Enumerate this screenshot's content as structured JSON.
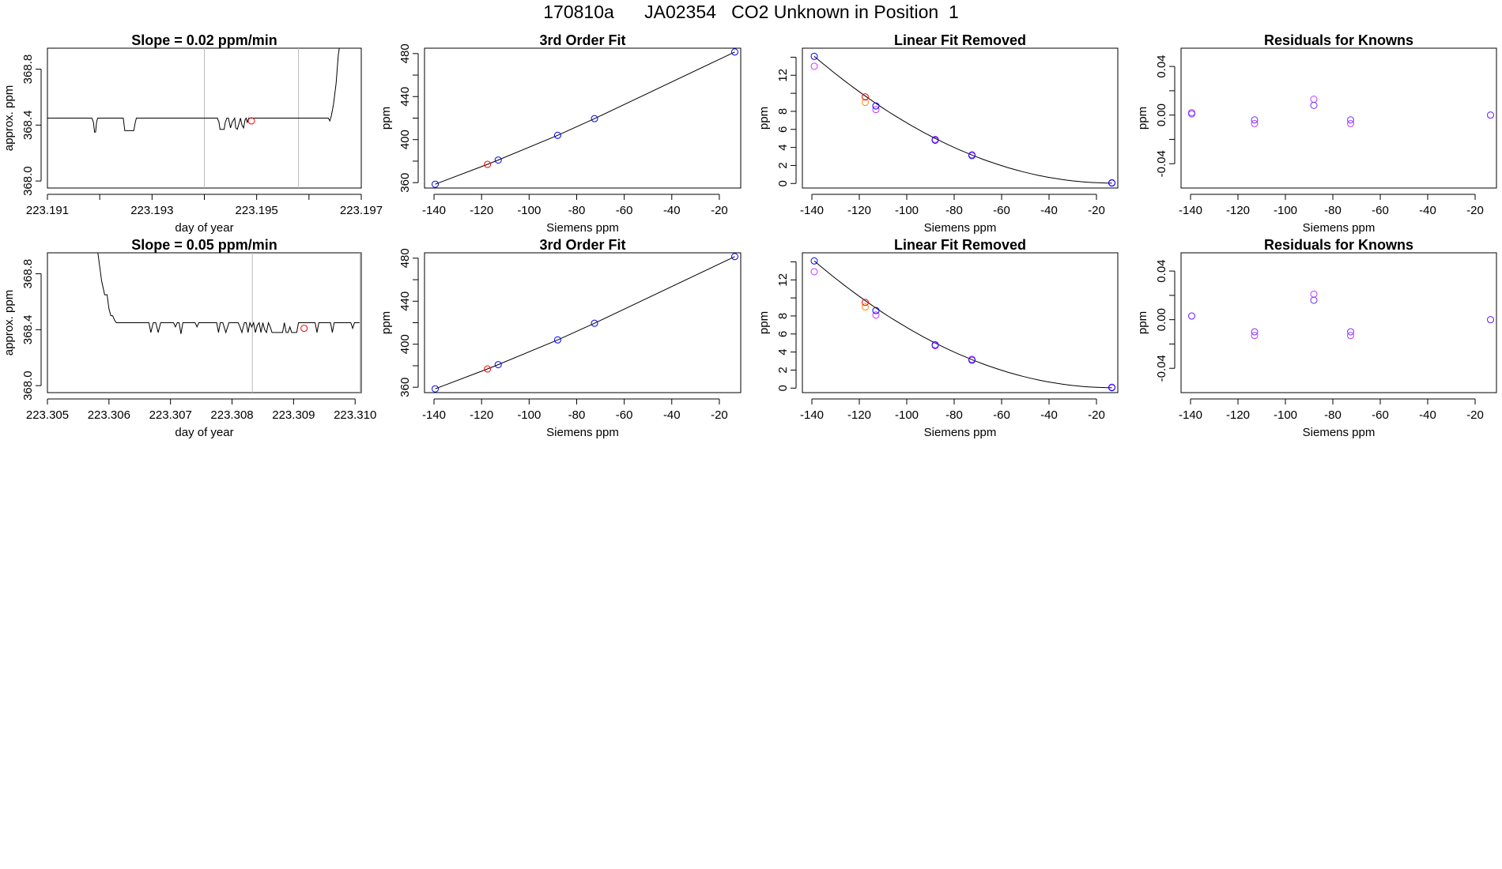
{
  "title": "170810a      JA02354   CO2 Unknown in Position  1",
  "colors": {
    "line": "#000000",
    "known": "#0000ff",
    "unknown": "#ff0000",
    "magenta": "#cc33ff",
    "orange": "#ff8c00",
    "purple": "#6633ff",
    "vline": "#bbbbbb"
  },
  "chart_data": [
    {
      "type": "line",
      "title": "Slope =  0.02  ppm/min",
      "xlabel": "day of year",
      "ylabel": "approx. ppm",
      "xlim": [
        223.191,
        223.197
      ],
      "ylim": [
        367.95,
        368.95
      ],
      "xticks": [
        "223.191",
        "223.193",
        "223.195",
        "223.197"
      ],
      "xminor": [
        223.192,
        223.194,
        223.196
      ],
      "yticks": [
        "368.0",
        "368.4",
        "368.8"
      ],
      "vlines": [
        223.194,
        223.1958
      ],
      "x": [
        223.191,
        223.19185,
        223.19188,
        223.1919,
        223.19192,
        223.19194,
        223.19196,
        223.19245,
        223.19248,
        223.1925,
        223.19255,
        223.19265,
        223.19268,
        223.1927,
        223.19425,
        223.19428,
        223.1943,
        223.19438,
        223.1944,
        223.19443,
        223.19446,
        223.1945,
        223.19453,
        223.19458,
        223.1946,
        223.19463,
        223.19467,
        223.19469,
        223.19472,
        223.19475,
        223.19478,
        223.1948,
        223.19482,
        223.19485,
        223.1949,
        223.19637,
        223.1964,
        223.19643,
        223.19647,
        223.19652,
        223.19656,
        223.19658
      ],
      "y": [
        368.45,
        368.45,
        368.42,
        368.35,
        368.35,
        368.42,
        368.45,
        368.45,
        368.36,
        368.36,
        368.36,
        368.36,
        368.42,
        368.45,
        368.45,
        368.42,
        368.37,
        368.37,
        368.42,
        368.45,
        368.45,
        368.38,
        368.42,
        368.45,
        368.38,
        368.37,
        368.42,
        368.45,
        368.4,
        368.38,
        368.44,
        368.45,
        368.42,
        368.45,
        368.45,
        368.45,
        368.43,
        368.47,
        368.55,
        368.7,
        368.9,
        368.95
      ],
      "unknown_point": {
        "x": 223.1949,
        "y": 368.43
      }
    },
    {
      "type": "scatter",
      "title": "3rd Order Fit",
      "xlabel": "Siemens ppm",
      "ylabel": "ppm",
      "xlim": [
        -144,
        -11
      ],
      "ylim": [
        355,
        485
      ],
      "xticks": [
        -140,
        -120,
        -100,
        -80,
        -60,
        -40,
        -20
      ],
      "yticks": [
        360,
        400,
        440,
        480
      ],
      "yminor": [
        380,
        420,
        460
      ],
      "curve": [
        [
          -139.5,
          358.5
        ],
        [
          -117.5,
          377
        ],
        [
          -113,
          381
        ],
        [
          -88,
          404
        ],
        [
          -72.5,
          419.5
        ],
        [
          -13.5,
          481.5
        ]
      ],
      "known_points": [
        [
          -139.5,
          358.5
        ],
        [
          -113,
          381
        ],
        [
          -88,
          404
        ],
        [
          -72.5,
          419.5
        ],
        [
          -13.5,
          481.5
        ]
      ],
      "unknown_points": [
        [
          -117.5,
          377
        ]
      ]
    },
    {
      "type": "scatter",
      "title": "Linear Fit Removed",
      "xlabel": "Siemens ppm",
      "ylabel": "ppm",
      "xlim": [
        -144,
        -11
      ],
      "ylim": [
        -0.5,
        15
      ],
      "xticks": [
        -140,
        -120,
        -100,
        -80,
        -60,
        -40,
        -20
      ],
      "yticks": [
        0,
        2,
        4,
        6,
        8,
        12
      ],
      "yminor": [
        10,
        14
      ],
      "curve_fn": "quadratic",
      "curve_points": [
        [
          -139,
          14.1
        ],
        [
          -13.5,
          0.05
        ]
      ],
      "known_points": [
        [
          -139,
          14.1
        ],
        [
          -113,
          8.6
        ],
        [
          -88,
          4.8
        ],
        [
          -72.5,
          3.1
        ],
        [
          -13.5,
          0.05
        ]
      ],
      "magenta_points": [
        [
          -139,
          13.0
        ],
        [
          -113,
          8.2
        ],
        [
          -88,
          4.9
        ],
        [
          -72.5,
          3.2
        ],
        [
          -13.5,
          0.1
        ]
      ],
      "orange_points": [
        [
          -117.5,
          9.0
        ]
      ],
      "unknown_points": [
        [
          -117.5,
          9.6
        ]
      ]
    },
    {
      "type": "scatter",
      "title": "Residuals for Knowns",
      "xlabel": "Siemens ppm",
      "ylabel": "ppm",
      "xlim": [
        -144,
        -11
      ],
      "ylim": [
        -0.06,
        0.055
      ],
      "xticks": [
        -140,
        -120,
        -100,
        -80,
        -60,
        -40,
        -20
      ],
      "yticks": [
        "-0.04",
        "0.00",
        "0.04"
      ],
      "yminor": [
        -0.02,
        0.02
      ],
      "known_points": [
        [
          -139.5,
          0.001
        ],
        [
          -113,
          -0.004
        ],
        [
          -88,
          0.008
        ],
        [
          -72.5,
          -0.004
        ],
        [
          -13.5,
          0.0
        ]
      ],
      "magenta_points": [
        [
          -139.5,
          0.002
        ],
        [
          -113,
          -0.007
        ],
        [
          -88,
          0.013
        ],
        [
          -72.5,
          -0.007
        ],
        [
          -13.5,
          0.0
        ]
      ]
    },
    {
      "type": "line",
      "title": "Slope =  0.05  ppm/min",
      "xlabel": "day of year",
      "ylabel": "approx. ppm",
      "xlim": [
        223.305,
        223.3101
      ],
      "ylim": [
        367.95,
        368.95
      ],
      "xticks": [
        "223.305",
        "223.306",
        "223.307",
        "223.308",
        "223.309",
        "223.310"
      ],
      "yticks": [
        "368.0",
        "368.4",
        "368.8"
      ],
      "vlines": [
        223.30833,
        223.31008
      ],
      "x": [
        223.30582,
        223.30588,
        223.30593,
        223.30597,
        223.306,
        223.30603,
        223.30606,
        223.30609,
        223.30612,
        223.3062,
        223.30665,
        223.30668,
        223.30672,
        223.30676,
        223.3068,
        223.30684,
        223.30688,
        223.30692,
        223.30705,
        223.30708,
        223.30711,
        223.30714,
        223.30717,
        223.3072,
        223.3074,
        223.30743,
        223.30746,
        223.3075,
        223.30775,
        223.30778,
        223.30781,
        223.30785,
        223.3079,
        223.30795,
        223.3081,
        223.30813,
        223.30816,
        223.3082,
        223.30823,
        223.30826,
        223.30829,
        223.30832,
        223.30835,
        223.30838,
        223.30841,
        223.30844,
        223.30847,
        223.3085,
        223.30853,
        223.30856,
        223.30859,
        223.30862,
        223.30865,
        223.30868,
        223.30871,
        223.30874,
        223.30877,
        223.30882,
        223.30885,
        223.30888,
        223.30891,
        223.30894,
        223.30897,
        223.309,
        223.30905,
        223.30908,
        223.30911,
        223.30914,
        223.30917,
        223.3092,
        223.30923,
        223.30935,
        223.30938,
        223.30941,
        223.30944,
        223.3096,
        223.30963,
        223.30966,
        223.30969,
        223.3099,
        223.30993,
        223.30996,
        223.30999,
        223.31007
      ],
      "y": [
        368.95,
        368.75,
        368.65,
        368.65,
        368.55,
        368.5,
        368.5,
        368.47,
        368.45,
        368.45,
        368.45,
        368.38,
        368.45,
        368.45,
        368.38,
        368.45,
        368.45,
        368.45,
        368.45,
        368.42,
        368.45,
        368.45,
        368.37,
        368.45,
        368.45,
        368.42,
        368.45,
        368.45,
        368.45,
        368.38,
        368.45,
        368.45,
        368.38,
        368.45,
        368.45,
        368.42,
        368.38,
        368.45,
        368.45,
        368.38,
        368.45,
        368.42,
        368.45,
        368.38,
        368.43,
        368.45,
        368.38,
        368.45,
        368.4,
        368.38,
        368.45,
        368.42,
        368.38,
        368.38,
        368.38,
        368.38,
        368.38,
        368.38,
        368.45,
        368.38,
        368.38,
        368.42,
        368.38,
        368.38,
        368.38,
        368.45,
        368.45,
        368.45,
        368.45,
        368.45,
        368.45,
        368.45,
        368.38,
        368.45,
        368.45,
        368.45,
        368.38,
        368.45,
        368.45,
        368.45,
        368.45,
        368.41,
        368.45,
        368.45
      ],
      "unknown_point": {
        "x": 223.30917,
        "y": 368.41
      }
    },
    {
      "type": "scatter",
      "title": "3rd Order Fit",
      "xlabel": "Siemens ppm",
      "ylabel": "ppm",
      "xlim": [
        -144,
        -11
      ],
      "ylim": [
        355,
        485
      ],
      "xticks": [
        -140,
        -120,
        -100,
        -80,
        -60,
        -40,
        -20
      ],
      "yticks": [
        360,
        400,
        440,
        480
      ],
      "yminor": [
        380,
        420,
        460
      ],
      "curve": [
        [
          -139.5,
          358.5
        ],
        [
          -117.5,
          377
        ],
        [
          -113,
          381
        ],
        [
          -88,
          404
        ],
        [
          -72.5,
          419.5
        ],
        [
          -13.5,
          481.5
        ]
      ],
      "known_points": [
        [
          -139.5,
          358.5
        ],
        [
          -113,
          381
        ],
        [
          -88,
          404
        ],
        [
          -72.5,
          419.5
        ],
        [
          -13.5,
          481.5
        ]
      ],
      "unknown_points": [
        [
          -117.5,
          377
        ]
      ]
    },
    {
      "type": "scatter",
      "title": "Linear Fit Removed",
      "xlabel": "Siemens ppm",
      "ylabel": "ppm",
      "xlim": [
        -144,
        -11
      ],
      "ylim": [
        -0.5,
        15
      ],
      "xticks": [
        -140,
        -120,
        -100,
        -80,
        -60,
        -40,
        -20
      ],
      "yticks": [
        0,
        2,
        4,
        6,
        8,
        12
      ],
      "yminor": [
        10,
        14
      ],
      "curve_fn": "quadratic",
      "curve_points": [
        [
          -139,
          14.1
        ],
        [
          -13.5,
          0.05
        ]
      ],
      "known_points": [
        [
          -139,
          14.1
        ],
        [
          -113,
          8.6
        ],
        [
          -88,
          4.8
        ],
        [
          -72.5,
          3.1
        ],
        [
          -13.5,
          0.05
        ]
      ],
      "magenta_points": [
        [
          -139,
          12.9
        ],
        [
          -113,
          8.1
        ],
        [
          -88,
          4.7
        ],
        [
          -72.5,
          3.2
        ],
        [
          -13.5,
          0.1
        ]
      ],
      "orange_points": [
        [
          -117.5,
          9.0
        ]
      ],
      "unknown_points": [
        [
          -117.5,
          9.5
        ]
      ]
    },
    {
      "type": "scatter",
      "title": "Residuals for Knowns",
      "xlabel": "Siemens ppm",
      "ylabel": "ppm",
      "xlim": [
        -144,
        -11
      ],
      "ylim": [
        -0.06,
        0.055
      ],
      "xticks": [
        -140,
        -120,
        -100,
        -80,
        -60,
        -40,
        -20
      ],
      "yticks": [
        "-0.04",
        "0.00",
        "0.04"
      ],
      "yminor": [
        -0.02,
        0.02
      ],
      "known_points": [
        [
          -139.5,
          0.003
        ],
        [
          -113,
          -0.01
        ],
        [
          -88,
          0.016
        ],
        [
          -72.5,
          -0.01
        ],
        [
          -13.5,
          0.0
        ]
      ],
      "magenta_points": [
        [
          -139.5,
          0.003
        ],
        [
          -113,
          -0.013
        ],
        [
          -88,
          0.021
        ],
        [
          -72.5,
          -0.013
        ],
        [
          -13.5,
          0.0
        ]
      ]
    }
  ]
}
